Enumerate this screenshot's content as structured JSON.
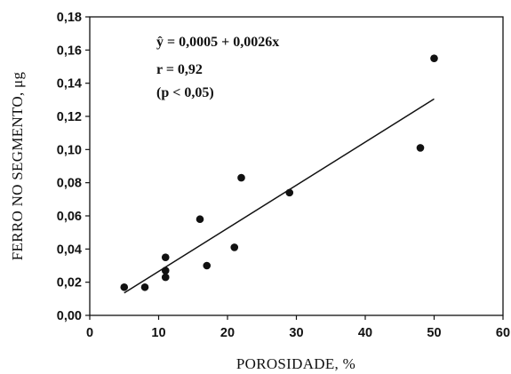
{
  "chart_data": {
    "type": "scatter",
    "title": "",
    "xlabel": "POROSIDADE, %",
    "ylabel": "FERRO NO SEGMENTO, μg",
    "xlim": [
      0,
      60
    ],
    "ylim": [
      0,
      0.18
    ],
    "x_ticks": [
      0,
      10,
      20,
      30,
      40,
      50,
      60
    ],
    "y_ticks": [
      0.0,
      0.02,
      0.04,
      0.06,
      0.08,
      0.1,
      0.12,
      0.14,
      0.16,
      0.18
    ],
    "x_tick_labels": [
      "0",
      "10",
      "20",
      "30",
      "40",
      "50",
      "60"
    ],
    "y_tick_labels": [
      "0,00",
      "0,02",
      "0,04",
      "0,06",
      "0,08",
      "0,10",
      "0,12",
      "0,14",
      "0,16",
      "0,18"
    ],
    "grid": false,
    "points": [
      {
        "x": 5,
        "y": 0.017
      },
      {
        "x": 8,
        "y": 0.017
      },
      {
        "x": 11,
        "y": 0.023
      },
      {
        "x": 11,
        "y": 0.027
      },
      {
        "x": 11,
        "y": 0.035
      },
      {
        "x": 16,
        "y": 0.058
      },
      {
        "x": 17,
        "y": 0.03
      },
      {
        "x": 21,
        "y": 0.041
      },
      {
        "x": 22,
        "y": 0.083
      },
      {
        "x": 29,
        "y": 0.074
      },
      {
        "x": 48,
        "y": 0.101
      },
      {
        "x": 50,
        "y": 0.155
      }
    ],
    "fit_line": {
      "x": [
        5,
        50
      ],
      "intercept": 0.0005,
      "slope": 0.0026
    },
    "annotations": {
      "equation_yhat": "ŷ",
      "equation_rhs": " = 0,0005 + 0,0026x",
      "r_value": "r = 0,92",
      "p_value": "(p < 0,05)"
    },
    "colors": {
      "marker": "#111111",
      "line": "#111111",
      "axis": "#111111"
    }
  }
}
